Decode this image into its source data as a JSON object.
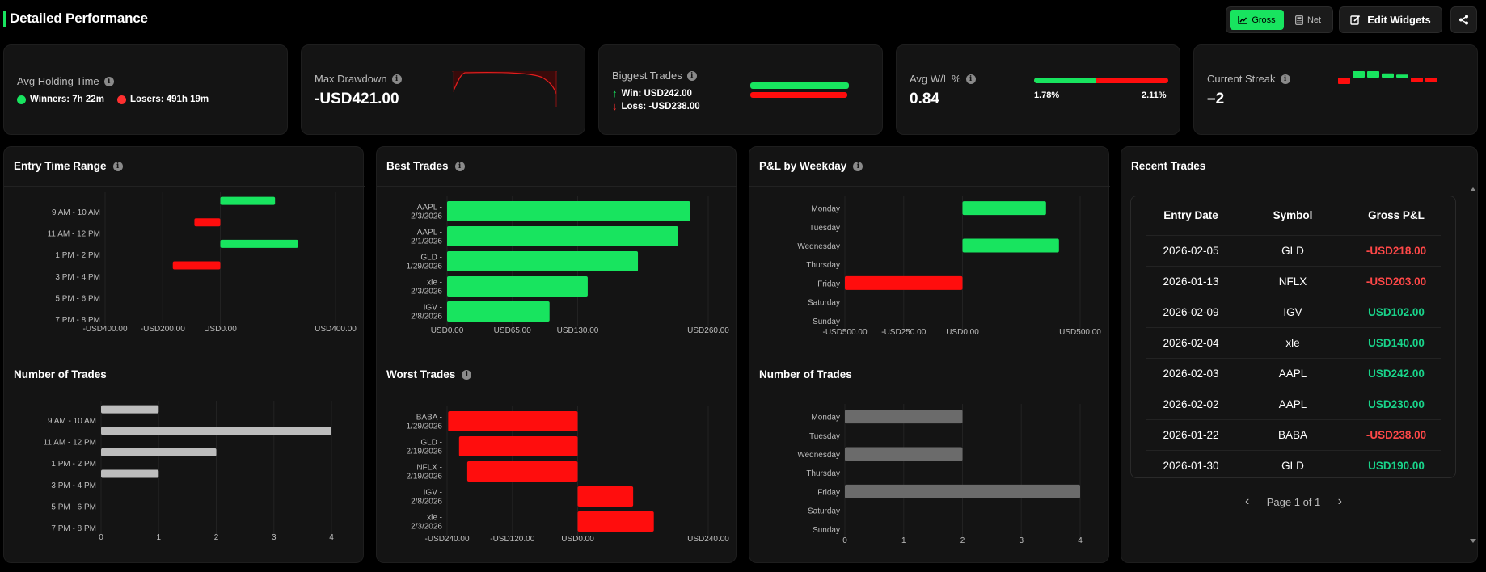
{
  "header": {
    "title": "Detailed Performance",
    "gross_label": "Gross",
    "net_label": "Net",
    "edit_label": "Edit Widgets"
  },
  "stats": {
    "holding": {
      "label": "Avg Holding Time",
      "winners": "Winners: 7h 22m",
      "losers": "Losers: 491h 19m"
    },
    "drawdown": {
      "label": "Max Drawdown",
      "value": "-USD421.00"
    },
    "biggest": {
      "label": "Biggest Trades",
      "win": "Win: USD242.00",
      "loss": "Loss: -USD238.00"
    },
    "avgwl": {
      "label": "Avg W/L %",
      "value": "0.84",
      "win_pct": "1.78%",
      "loss_pct": "2.11%",
      "win_share": 0.46
    },
    "streak": {
      "label": "Current Streak",
      "value": "–2",
      "bars": [
        -1,
        1,
        1,
        0.6,
        0.4,
        -0.6,
        -0.6
      ]
    }
  },
  "panels": {
    "entry_time": "Entry Time Range",
    "num_trades": "Number of Trades",
    "best": "Best Trades",
    "worst": "Worst Trades",
    "weekday": "P&L by Weekday",
    "num_trades_weekday": "Number of Trades",
    "recent": "Recent Trades"
  },
  "chart_data": [
    {
      "type": "bar",
      "orientation": "horizontal",
      "categories": [
        "9 AM - 10 AM",
        "11 AM - 12 PM",
        "1 PM - 2 PM",
        "3 PM - 4 PM",
        "5 PM - 6 PM",
        "7 PM - 8 PM"
      ],
      "rows": [
        {
          "label": "",
          "value": 190,
          "tick": false
        },
        {
          "label": "9 AM - 10 AM",
          "value": null,
          "tick": true
        },
        {
          "label": "",
          "value": -90,
          "tick": false
        },
        {
          "label": "11 AM - 12 PM",
          "value": null,
          "tick": true
        },
        {
          "label": "",
          "value": 270,
          "tick": false
        },
        {
          "label": "1 PM - 2 PM",
          "value": null,
          "tick": true
        },
        {
          "label": "",
          "value": -165,
          "tick": false
        },
        {
          "label": "3 PM - 4 PM",
          "value": null,
          "tick": true
        },
        {
          "label": "",
          "value": null,
          "tick": false
        },
        {
          "label": "5 PM - 6 PM",
          "value": null,
          "tick": true
        },
        {
          "label": "",
          "value": null,
          "tick": false
        },
        {
          "label": "7 PM - 8 PM",
          "value": null,
          "tick": true
        }
      ],
      "xlim": [
        -400,
        400
      ],
      "xticks": [
        -400,
        -200,
        0,
        400
      ],
      "xtick_labels": [
        "-USD400.00",
        "-USD200.00",
        "USD0.00",
        "USD400.00"
      ],
      "colors": {
        "pos": "#18e45f",
        "neg": "#ff0d0d"
      }
    },
    {
      "type": "bar",
      "orientation": "horizontal",
      "categories": [
        "9 AM - 10 AM",
        "11 AM - 12 PM",
        "1 PM - 2 PM",
        "3 PM - 4 PM",
        "5 PM - 6 PM",
        "7 PM - 8 PM"
      ],
      "rows": [
        {
          "label": "",
          "value": 1,
          "tick": false
        },
        {
          "label": "9 AM - 10 AM",
          "value": null,
          "tick": true
        },
        {
          "label": "",
          "value": 4,
          "tick": false
        },
        {
          "label": "11 AM - 12 PM",
          "value": null,
          "tick": true
        },
        {
          "label": "",
          "value": 2,
          "tick": false
        },
        {
          "label": "1 PM - 2 PM",
          "value": null,
          "tick": true
        },
        {
          "label": "",
          "value": 1,
          "tick": false
        },
        {
          "label": "3 PM - 4 PM",
          "value": null,
          "tick": true
        },
        {
          "label": "",
          "value": null,
          "tick": false
        },
        {
          "label": "5 PM - 6 PM",
          "value": null,
          "tick": true
        },
        {
          "label": "",
          "value": null,
          "tick": false
        },
        {
          "label": "7 PM - 8 PM",
          "value": null,
          "tick": true
        }
      ],
      "xlim": [
        0,
        4
      ],
      "xticks": [
        0,
        1,
        2,
        3,
        4
      ],
      "xtick_labels": [
        "0",
        "1",
        "2",
        "3",
        "4"
      ],
      "colors": {
        "pos": "#bdbdbd"
      }
    },
    {
      "type": "bar",
      "orientation": "horizontal",
      "categories": [
        "AAPL - 2/3/2026",
        "AAPL - 2/1/2026",
        "GLD - 1/29/2026",
        "xle - 2/3/2026",
        "IGV - 2/8/2026"
      ],
      "rows": [
        {
          "label": "AAPL - 2/3/2026",
          "value": 242
        },
        {
          "label": "AAPL - 2/1/2026",
          "value": 230
        },
        {
          "label": "GLD - 1/29/2026",
          "value": 190
        },
        {
          "label": "xle - 2/3/2026",
          "value": 140
        },
        {
          "label": "IGV - 2/8/2026",
          "value": 102
        }
      ],
      "xlim": [
        0,
        260
      ],
      "xticks": [
        0,
        65,
        130,
        260
      ],
      "xtick_labels": [
        "USD0.00",
        "USD65.00",
        "USD130.00",
        "USD260.00"
      ],
      "colors": {
        "pos": "#18e45f",
        "neg": "#ff0d0d"
      }
    },
    {
      "type": "bar",
      "orientation": "horizontal",
      "categories": [
        "BABA - 1/29/2026",
        "GLD - 2/19/2026",
        "NFLX - 2/19/2026",
        "IGV - 2/8/2026",
        "xle - 2/3/2026"
      ],
      "rows": [
        {
          "label": "BABA - 1/29/2026",
          "value": -238
        },
        {
          "label": "GLD - 2/19/2026",
          "value": -218
        },
        {
          "label": "NFLX - 2/19/2026",
          "value": -203
        },
        {
          "label": "IGV - 2/8/2026",
          "value": 102
        },
        {
          "label": "xle - 2/3/2026",
          "value": 140
        }
      ],
      "xlim": [
        -240,
        240
      ],
      "xticks": [
        -240,
        -120,
        0,
        240
      ],
      "xtick_labels": [
        "-USD240.00",
        "-USD120.00",
        "USD0.00",
        "USD240.00"
      ],
      "colors": {
        "pos": "#ff0d0d",
        "neg": "#ff0d0d"
      }
    },
    {
      "type": "bar",
      "orientation": "horizontal",
      "categories": [
        "Monday",
        "Tuesday",
        "Wednesday",
        "Thursday",
        "Friday",
        "Saturday",
        "Sunday"
      ],
      "rows": [
        {
          "label": "Monday",
          "value": 355
        },
        {
          "label": "Tuesday",
          "value": null
        },
        {
          "label": "Wednesday",
          "value": 410
        },
        {
          "label": "Thursday",
          "value": null
        },
        {
          "label": "Friday",
          "value": -500
        },
        {
          "label": "Saturday",
          "value": null
        },
        {
          "label": "Sunday",
          "value": null
        }
      ],
      "xlim": [
        -500,
        500
      ],
      "xticks": [
        -500,
        -250,
        0,
        500
      ],
      "xtick_labels": [
        "-USD500.00",
        "-USD250.00",
        "USD0.00",
        "USD500.00"
      ],
      "colors": {
        "pos": "#18e45f",
        "neg": "#ff0d0d"
      }
    },
    {
      "type": "bar",
      "orientation": "horizontal",
      "categories": [
        "Monday",
        "Tuesday",
        "Wednesday",
        "Thursday",
        "Friday",
        "Saturday",
        "Sunday"
      ],
      "rows": [
        {
          "label": "Monday",
          "value": 2
        },
        {
          "label": "Tuesday",
          "value": null
        },
        {
          "label": "Wednesday",
          "value": 2
        },
        {
          "label": "Thursday",
          "value": null
        },
        {
          "label": "Friday",
          "value": 4
        },
        {
          "label": "Saturday",
          "value": null
        },
        {
          "label": "Sunday",
          "value": null
        }
      ],
      "xlim": [
        0,
        4
      ],
      "xticks": [
        0,
        1,
        2,
        3,
        4
      ],
      "xtick_labels": [
        "0",
        "1",
        "2",
        "3",
        "4"
      ],
      "colors": {
        "pos": "#6b6b6b"
      }
    }
  ],
  "recent": {
    "headers": [
      "Entry Date",
      "Symbol",
      "Gross P&L"
    ],
    "rows": [
      {
        "date": "2026-02-05",
        "symbol": "GLD",
        "pnl": "-USD218.00",
        "sign": "neg"
      },
      {
        "date": "2026-01-13",
        "symbol": "NFLX",
        "pnl": "-USD203.00",
        "sign": "neg"
      },
      {
        "date": "2026-02-09",
        "symbol": "IGV",
        "pnl": "USD102.00",
        "sign": "pos"
      },
      {
        "date": "2026-02-04",
        "symbol": "xle",
        "pnl": "USD140.00",
        "sign": "pos"
      },
      {
        "date": "2026-02-03",
        "symbol": "AAPL",
        "pnl": "USD242.00",
        "sign": "pos"
      },
      {
        "date": "2026-02-02",
        "symbol": "AAPL",
        "pnl": "USD230.00",
        "sign": "pos"
      },
      {
        "date": "2026-01-22",
        "symbol": "BABA",
        "pnl": "-USD238.00",
        "sign": "neg"
      },
      {
        "date": "2026-01-30",
        "symbol": "GLD",
        "pnl": "USD190.00",
        "sign": "pos"
      }
    ],
    "pager": "Page 1 of 1"
  }
}
